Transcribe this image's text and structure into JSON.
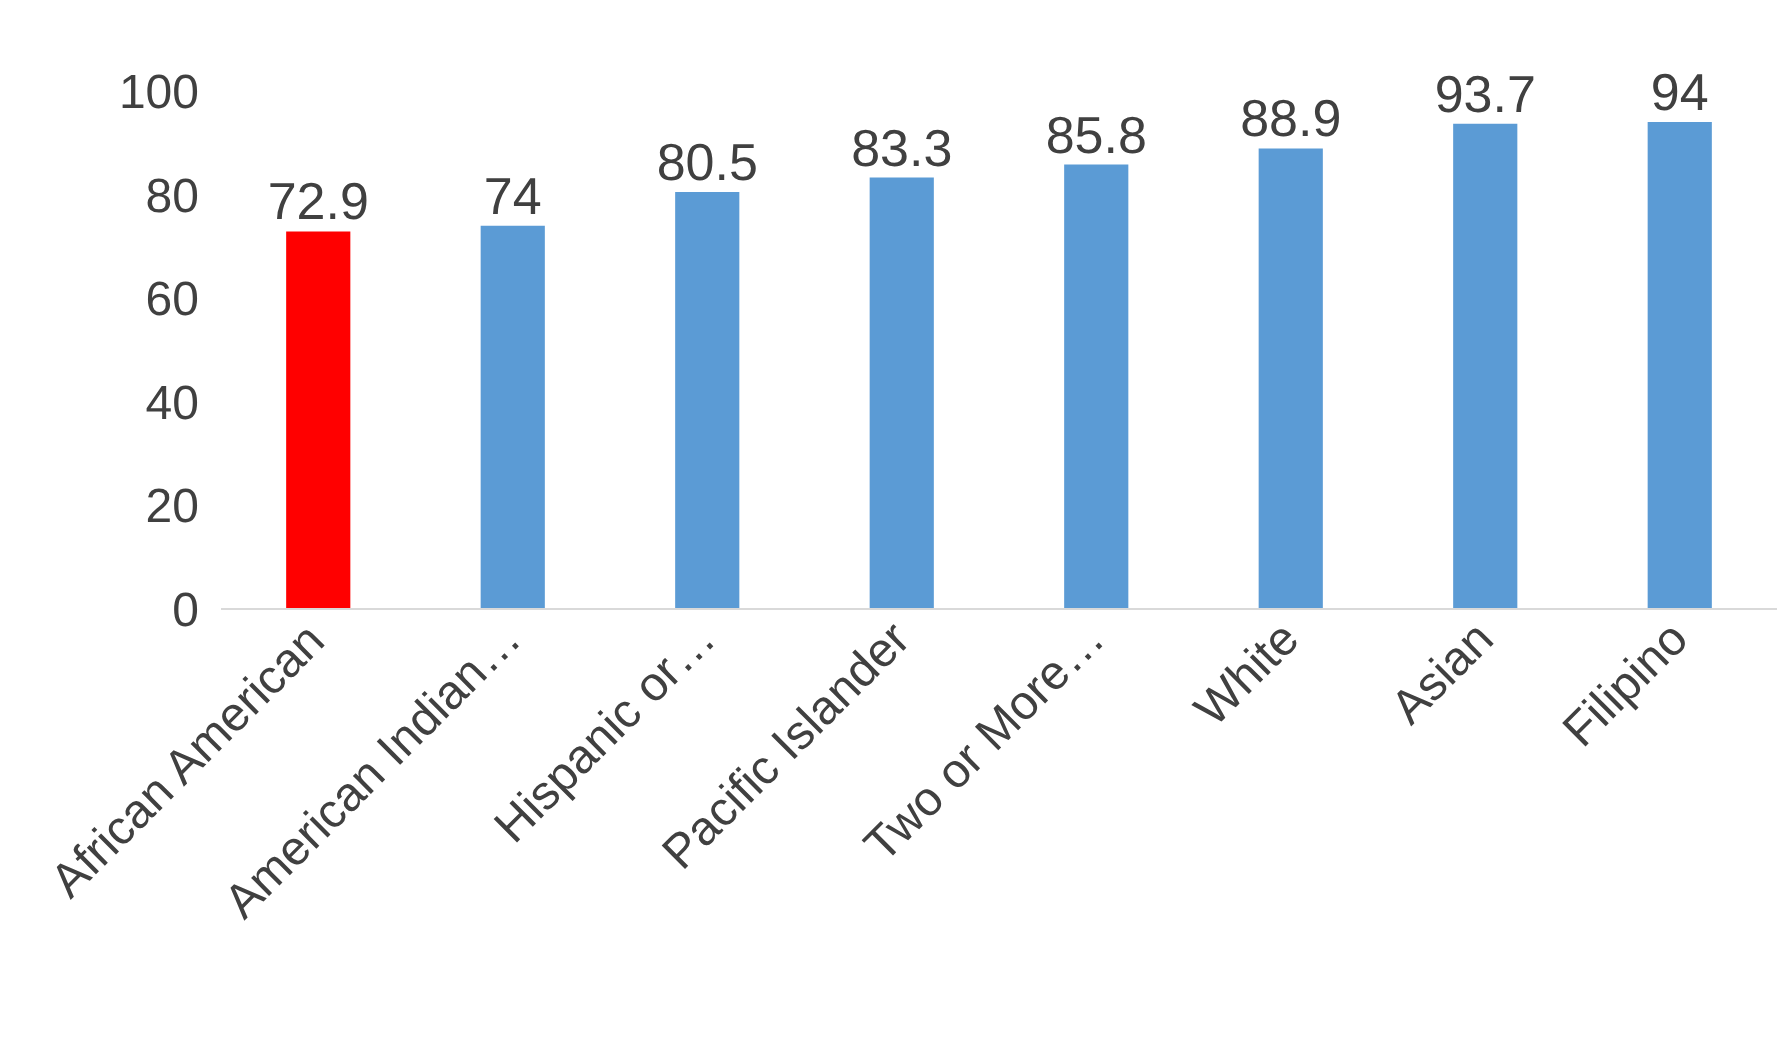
{
  "chart_data": {
    "type": "bar",
    "categories": [
      "African American",
      "American Indian…",
      "Hispanic or…",
      "Pacific Islander",
      "Two or More…",
      "White",
      "Asian",
      "Filipino"
    ],
    "values": [
      72.9,
      74,
      80.5,
      83.3,
      85.8,
      88.9,
      93.7,
      94
    ],
    "colors": [
      "#ff0000",
      "#5b9bd5",
      "#5b9bd5",
      "#5b9bd5",
      "#5b9bd5",
      "#5b9bd5",
      "#5b9bd5",
      "#5b9bd5"
    ],
    "ylim": [
      0,
      100
    ],
    "yticks": [
      0,
      20,
      40,
      60,
      80,
      100
    ],
    "grid": false,
    "data_labels": true
  }
}
